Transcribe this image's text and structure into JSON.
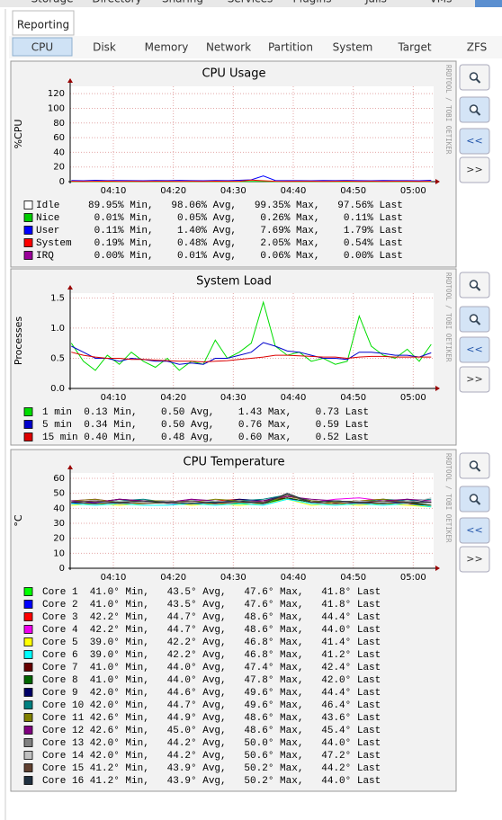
{
  "top_nav": [
    "Storage",
    "Directory",
    "Sharing",
    "Services",
    "Plugins",
    "Jails",
    "VMs"
  ],
  "tab": "Reporting",
  "subtabs": [
    "CPU",
    "Disk",
    "Memory",
    "Network",
    "Partition",
    "System",
    "Target",
    "ZFS"
  ],
  "active_subtab": 0,
  "side_label": "RRDTOOL / TOBI OETIKER",
  "buttons": [
    "<<",
    ">>"
  ],
  "graphs": [
    {
      "type": "line",
      "title": "CPU Usage",
      "y_label": "%CPU",
      "ylim": [
        0,
        130
      ],
      "yticks": [
        0,
        20,
        40,
        60,
        80,
        100,
        120
      ],
      "xlim": [
        2.8,
        63.4
      ],
      "xticks": [
        {
          "value": 10,
          "label": "04:10"
        },
        {
          "value": 20,
          "label": "04:20"
        },
        {
          "value": 30,
          "label": "04:30"
        },
        {
          "value": 40,
          "label": "04:40"
        },
        {
          "value": 50,
          "label": "04:50"
        },
        {
          "value": 60,
          "label": "05:00"
        }
      ],
      "x": [
        3,
        5,
        7,
        9,
        11,
        13,
        15,
        17,
        19,
        21,
        23,
        25,
        27,
        29,
        31,
        33,
        35,
        37,
        39,
        41,
        43,
        45,
        47,
        49,
        51,
        53,
        55,
        57,
        59,
        61,
        63
      ],
      "series": [
        {
          "name": "Idle",
          "color": "#ffffff",
          "stats": "89.95% Min,   98.06% Avg,   99.35% Max,   97.56% Last"
        },
        {
          "name": "Nice",
          "color": "#00cc00",
          "stats": " 0.01% Min,    0.05% Avg,    0.26% Max,    0.11% Last",
          "values": [
            0.05,
            0.05,
            0.04,
            0.05,
            0.06,
            0.05,
            0.04,
            0.05,
            0.05,
            0.06,
            0.05,
            0.04,
            0.05,
            0.05,
            0.06,
            0.2,
            0.26,
            0.05,
            0.04,
            0.05,
            0.05,
            0.06,
            0.05,
            0.04,
            0.05,
            0.05,
            0.06,
            0.05,
            0.04,
            0.05,
            0.11
          ]
        },
        {
          "name": "User",
          "color": "#0000ff",
          "stats": " 0.11% Min,    1.40% Avg,    7.69% Max,    1.79% Last",
          "values": [
            1.5,
            1.2,
            1.8,
            1.3,
            1.6,
            1.4,
            1.2,
            1.5,
            1.3,
            1.7,
            1.4,
            1.2,
            1.5,
            1.3,
            1.8,
            2.5,
            7.69,
            1.6,
            1.3,
            1.4,
            1.2,
            1.5,
            1.3,
            1.6,
            1.4,
            1.2,
            1.5,
            1.3,
            1.4,
            1.2,
            1.79
          ]
        },
        {
          "name": "System",
          "color": "#ff0000",
          "stats": " 0.19% Min,    0.48% Avg,    2.05% Max,    0.54% Last",
          "values": [
            0.5,
            0.4,
            0.5,
            0.6,
            0.4,
            0.5,
            0.4,
            0.5,
            0.5,
            0.4,
            0.5,
            0.4,
            0.6,
            0.5,
            0.5,
            2.05,
            1.2,
            0.5,
            0.4,
            0.5,
            0.5,
            0.4,
            0.5,
            0.6,
            0.4,
            0.5,
            0.4,
            0.5,
            0.5,
            0.4,
            0.54
          ]
        },
        {
          "name": "IRQ",
          "color": "#990099",
          "stats": " 0.00% Min,    0.01% Avg,    0.06% Max,    0.00% Last"
        }
      ]
    },
    {
      "type": "line",
      "title": "System Load",
      "y_label": "Processes",
      "ylim": [
        0,
        1.58
      ],
      "yticks": [
        {
          "value": 0,
          "label": "0.0"
        },
        0.5,
        {
          "value": 1,
          "label": "1.0"
        },
        1.5
      ],
      "xlim": [
        2.8,
        63.4
      ],
      "xticks": [
        {
          "value": 10,
          "label": "04:10"
        },
        {
          "value": 20,
          "label": "04:20"
        },
        {
          "value": 30,
          "label": "04:30"
        },
        {
          "value": 40,
          "label": "04:40"
        },
        {
          "value": 50,
          "label": "04:50"
        },
        {
          "value": 60,
          "label": "05:00"
        }
      ],
      "x": [
        3,
        5,
        7,
        9,
        11,
        13,
        15,
        17,
        19,
        21,
        23,
        25,
        27,
        29,
        31,
        33,
        35,
        37,
        39,
        41,
        43,
        45,
        47,
        49,
        51,
        53,
        55,
        57,
        59,
        61,
        63
      ],
      "series": [
        {
          "name": "1 min",
          "color": "#00dd00",
          "stats": "0.13 Min,    0.50 Avg,    1.43 Max,    0.73 Last",
          "values": [
            0.75,
            0.45,
            0.3,
            0.55,
            0.4,
            0.6,
            0.45,
            0.35,
            0.5,
            0.3,
            0.45,
            0.4,
            0.8,
            0.5,
            0.6,
            0.75,
            1.43,
            0.7,
            0.55,
            0.6,
            0.45,
            0.5,
            0.4,
            0.45,
            1.2,
            0.7,
            0.55,
            0.5,
            0.65,
            0.45,
            0.73
          ]
        },
        {
          "name": "5 min",
          "color": "#0000cc",
          "stats": "0.34 Min,    0.50 Avg,    0.76 Max,    0.59 Last",
          "values": [
            0.7,
            0.6,
            0.5,
            0.5,
            0.45,
            0.5,
            0.48,
            0.45,
            0.45,
            0.4,
            0.42,
            0.4,
            0.5,
            0.5,
            0.55,
            0.6,
            0.76,
            0.7,
            0.62,
            0.6,
            0.55,
            0.5,
            0.5,
            0.48,
            0.6,
            0.6,
            0.58,
            0.55,
            0.55,
            0.52,
            0.59
          ]
        },
        {
          "name": "15 min",
          "color": "#dd0000",
          "stats": "0.40 Min,    0.48 Avg,    0.60 Max,    0.52 Last",
          "values": [
            0.6,
            0.55,
            0.52,
            0.5,
            0.5,
            0.48,
            0.48,
            0.47,
            0.46,
            0.45,
            0.45,
            0.44,
            0.45,
            0.46,
            0.48,
            0.5,
            0.52,
            0.55,
            0.55,
            0.54,
            0.53,
            0.52,
            0.52,
            0.5,
            0.52,
            0.53,
            0.53,
            0.52,
            0.52,
            0.52,
            0.52
          ]
        }
      ]
    },
    {
      "type": "line",
      "title": "CPU Temperature",
      "y_label": "°C",
      "ylim": [
        0,
        63.6
      ],
      "yticks": [
        0,
        10,
        20,
        30,
        40,
        50,
        60
      ],
      "xlim": [
        2.8,
        63.4
      ],
      "xticks": [
        {
          "value": 10,
          "label": "04:10"
        },
        {
          "value": 20,
          "label": "04:20"
        },
        {
          "value": 30,
          "label": "04:30"
        },
        {
          "value": 40,
          "label": "04:40"
        },
        {
          "value": 50,
          "label": "04:50"
        },
        {
          "value": 60,
          "label": "05:00"
        }
      ],
      "x": [
        3,
        7,
        11,
        15,
        19,
        23,
        27,
        31,
        35,
        39,
        43,
        47,
        51,
        55,
        59,
        63
      ],
      "series": [
        {
          "name": "Core 1",
          "color": "#00ff00",
          "stats": "41.0° Min,   43.5° Avg,   47.6° Max,   41.8° Last",
          "values": [
            44,
            43,
            45,
            44,
            43,
            44,
            45,
            43,
            44,
            47,
            44,
            43,
            44,
            45,
            43,
            42
          ]
        },
        {
          "name": "Core 2",
          "color": "#0000ff",
          "stats": "41.0° Min,   43.5° Avg,   47.6° Max,   41.8° Last",
          "values": [
            43,
            44,
            44,
            45,
            43,
            43,
            44,
            44,
            43,
            46,
            45,
            44,
            43,
            44,
            44,
            42
          ]
        },
        {
          "name": "Core 3",
          "color": "#ff0000",
          "stats": "42.2° Min,   44.7° Avg,   48.6° Max,   44.4° Last",
          "values": [
            45,
            44,
            46,
            44,
            45,
            44,
            45,
            46,
            44,
            48,
            45,
            44,
            45,
            46,
            44,
            44
          ]
        },
        {
          "name": "Core 4",
          "color": "#ee00ee",
          "stats": "42.2° Min,   44.7° Avg,   48.6° Max,   44.0° Last",
          "values": [
            45,
            46,
            44,
            45,
            44,
            46,
            44,
            45,
            45,
            47,
            44,
            46,
            47,
            45,
            44,
            44
          ]
        },
        {
          "name": "Core 5",
          "color": "#ffff00",
          "stats": "39.0° Min,   42.2° Avg,   46.8° Max,   41.4° Last",
          "values": [
            42,
            43,
            42,
            43,
            44,
            42,
            43,
            42,
            43,
            46,
            42,
            43,
            42,
            43,
            42,
            41
          ]
        },
        {
          "name": "Core 6",
          "color": "#00ffff",
          "stats": "39.0° Min,   42.2° Avg,   46.8° Max,   41.2° Last",
          "values": [
            43,
            42,
            43,
            42,
            42,
            43,
            42,
            43,
            42,
            46,
            43,
            42,
            43,
            42,
            43,
            41
          ]
        },
        {
          "name": "Core 7",
          "color": "#660000",
          "stats": "41.0° Min,   44.0° Avg,   47.4° Max,   42.4° Last",
          "values": [
            44,
            43,
            44,
            45,
            43,
            44,
            43,
            44,
            45,
            47,
            44,
            43,
            44,
            44,
            43,
            42
          ]
        },
        {
          "name": "Core 8",
          "color": "#006600",
          "stats": "41.0° Min,   44.0° Avg,   47.8° Max,   42.0° Last",
          "values": [
            44,
            45,
            43,
            44,
            44,
            43,
            45,
            44,
            43,
            47,
            44,
            45,
            44,
            43,
            44,
            42
          ]
        },
        {
          "name": "Core 9",
          "color": "#000066",
          "stats": "42.0° Min,   44.6° Avg,   49.6° Max,   44.4° Last",
          "values": [
            45,
            44,
            46,
            45,
            44,
            45,
            44,
            46,
            45,
            49,
            45,
            44,
            45,
            44,
            46,
            44
          ]
        },
        {
          "name": "Core 10",
          "color": "#008080",
          "stats": "42.0° Min,   44.7° Avg,   49.6° Max,   46.4° Last",
          "values": [
            45,
            44,
            45,
            46,
            44,
            45,
            44,
            45,
            46,
            49,
            44,
            45,
            44,
            46,
            45,
            46
          ]
        },
        {
          "name": "Core 11",
          "color": "#808000",
          "stats": "42.6° Min,   44.9° Avg,   48.6° Max,   43.6° Last",
          "values": [
            45,
            46,
            44,
            45,
            45,
            44,
            46,
            45,
            44,
            48,
            45,
            44,
            45,
            46,
            44,
            44
          ]
        },
        {
          "name": "Core 12",
          "color": "#800080",
          "stats": "42.6° Min,   45.0° Avg,   48.6° Max,   45.4° Last",
          "values": [
            45,
            44,
            46,
            45,
            44,
            46,
            45,
            44,
            45,
            48,
            46,
            45,
            44,
            45,
            46,
            45
          ]
        },
        {
          "name": "Core 13",
          "color": "#808080",
          "stats": "42.0° Min,   44.2° Avg,   50.0° Max,   44.0° Last",
          "values": [
            44,
            45,
            43,
            44,
            45,
            44,
            43,
            45,
            44,
            49,
            44,
            45,
            43,
            44,
            45,
            44
          ]
        },
        {
          "name": "Core 14",
          "color": "#c0c0c0",
          "stats": "42.0° Min,   44.2° Avg,   50.6° Max,   47.2° Last",
          "values": [
            44,
            43,
            45,
            44,
            43,
            44,
            45,
            44,
            43,
            50,
            44,
            43,
            45,
            44,
            43,
            47
          ]
        },
        {
          "name": "Core 15",
          "color": "#604030",
          "stats": "41.2° Min,   43.9° Avg,   50.2° Max,   44.2° Last",
          "values": [
            44,
            45,
            44,
            43,
            44,
            45,
            43,
            44,
            44,
            49,
            44,
            43,
            44,
            45,
            44,
            44
          ]
        },
        {
          "name": "Core 16",
          "color": "#203040",
          "stats": "41.2° Min,   43.9° Avg,   50.2° Max,   44.0° Last",
          "values": [
            44,
            43,
            44,
            45,
            44,
            43,
            44,
            45,
            43,
            50,
            44,
            45,
            44,
            43,
            44,
            44
          ]
        }
      ]
    }
  ]
}
